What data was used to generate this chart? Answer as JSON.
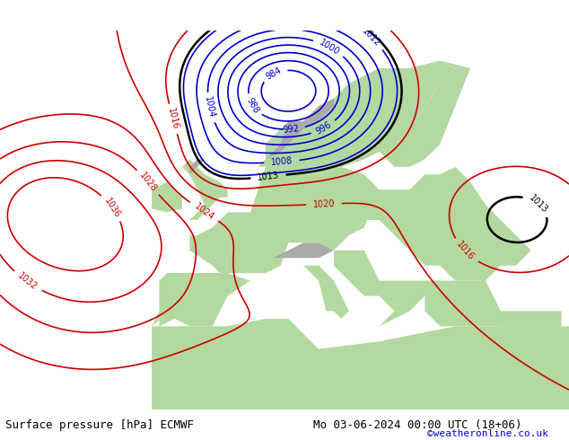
{
  "title_left": "Surface pressure [hPa] ECMWF",
  "title_right": "Mo 03-06-2024 00:00 UTC (18+06)",
  "credit": "©weatheronline.co.uk",
  "bg_ocean": "#c8c8c8",
  "bg_land_green": "#b4d9a0",
  "bg_land_gray": "#b4b4b4",
  "contour_low_color": "#0000cc",
  "contour_high_color": "#cc0000",
  "contour_front_color": "#000000",
  "font_size_labels": 8,
  "font_size_title": 9,
  "font_size_credit": 8
}
